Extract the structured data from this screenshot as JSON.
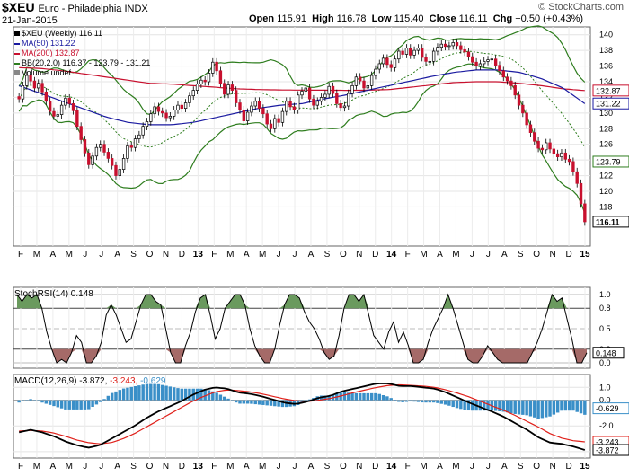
{
  "header": {
    "symbol": "$XEU",
    "name": "Euro - Philadelphia INDX",
    "date": "21-Jan-2015",
    "open_label": "Open",
    "open": "115.91",
    "high_label": "High",
    "high": "116.78",
    "low_label": "Low",
    "low": "115.40",
    "close_label": "Close",
    "close": "116.11",
    "chg_label": "Chg",
    "chg": "+0.50 (+0.43%)",
    "watermark": "© StockCharts.com"
  },
  "legend": {
    "main": "$XEU (Weekly) 116.11",
    "ma50": "MA(50) 131.22",
    "ma200": "MA(200) 132.87",
    "bb": "BB(20,2.0) 116.37 - 123.79 - 131.21",
    "volume": "Volume undef"
  },
  "indicators": {
    "stoch_title": "StochRSI(14) 0.148",
    "macd_title_black": "MACD(12,26,9) -3.872,",
    "macd_title_red": "-3.243,",
    "macd_title_blue": "-0.629"
  },
  "colors": {
    "price_up": "#ffffff",
    "price_down": "#c8102e",
    "ma50": "#1a1aa0",
    "ma200": "#c8102e",
    "bb": "#2e7d1e",
    "bb_mid": "#2e7d1e",
    "macd": "#000000",
    "signal": "#e0201a",
    "hist": "#3a8fc8",
    "stoch_hi": "#6a9a5e",
    "stoch_lo": "#a56a68"
  },
  "chart_data": [
    {
      "type": "candlestick",
      "title": "$XEU Euro - Philadelphia INDX (Weekly)",
      "ylim": [
        113,
        141
      ],
      "y_ticks": [
        118,
        120,
        122,
        124,
        126,
        128,
        130,
        132,
        134,
        136,
        138,
        140
      ],
      "x_tick_labels": [
        "F",
        "M",
        "A",
        "M",
        "J",
        "J",
        "A",
        "S",
        "O",
        "N",
        "D",
        "13",
        "F",
        "M",
        "A",
        "M",
        "J",
        "J",
        "A",
        "S",
        "O",
        "N",
        "D",
        "14",
        "F",
        "M",
        "A",
        "M",
        "J",
        "J",
        "A",
        "S",
        "O",
        "N",
        "D",
        "15"
      ],
      "close": [
        131.8,
        133.5,
        134.8,
        134.1,
        133.2,
        133.8,
        132.7,
        131.5,
        130.2,
        129.6,
        129.8,
        131.0,
        131.9,
        131.2,
        130.3,
        128.3,
        126.6,
        124.9,
        123.4,
        124.5,
        125.6,
        126.0,
        125.0,
        124.2,
        123.3,
        122.0,
        122.8,
        124.2,
        125.8,
        125.6,
        126.7,
        127.2,
        128.3,
        128.9,
        129.9,
        130.8,
        130.2,
        130.0,
        129.4,
        129.6,
        130.4,
        131.0,
        130.6,
        131.3,
        132.2,
        132.9,
        133.7,
        134.2,
        134.0,
        135.1,
        136.5,
        135.4,
        133.8,
        132.4,
        133.6,
        132.9,
        131.3,
        130.4,
        129.0,
        130.1,
        130.9,
        131.5,
        130.6,
        129.9,
        128.6,
        128.0,
        129.3,
        128.8,
        130.2,
        131.5,
        130.8,
        130.4,
        132.3,
        132.8,
        133.2,
        131.8,
        131.0,
        131.5,
        132.0,
        132.4,
        133.4,
        132.5,
        131.2,
        130.7,
        130.9,
        132.5,
        133.5,
        134.6,
        134.1,
        133.2,
        133.5,
        134.8,
        135.6,
        136.3,
        137.0,
        136.2,
        135.8,
        136.9,
        137.9,
        137.5,
        138.3,
        137.4,
        138.0,
        138.3,
        137.1,
        136.6,
        136.6,
        137.9,
        138.4,
        138.8,
        138.5,
        138.6,
        139.0,
        138.6,
        138.1,
        137.8,
        137.2,
        136.5,
        136.0,
        136.3,
        136.6,
        136.8,
        136.9,
        136.1,
        135.4,
        134.6,
        134.1,
        133.5,
        132.3,
        131.0,
        130.0,
        128.5,
        127.5,
        126.4,
        125.5,
        125.3,
        126.2,
        125.4,
        124.8,
        124.4,
        124.9,
        124.1,
        123.8,
        122.5,
        121.0,
        118.4,
        116.1
      ],
      "up_weeks": "alternating per close change",
      "series": [
        {
          "name": "MA(50)",
          "last": 131.22,
          "values": [
            133.5,
            132.5,
            131.5,
            130.5,
            129.5,
            128.8,
            128.5,
            128.5,
            128.8,
            129.4,
            130.0,
            130.6,
            131.0,
            131.2,
            131.8,
            132.3,
            132.9,
            133.5,
            134.1,
            134.7,
            135.2,
            135.5,
            135.5,
            135.2,
            134.4,
            133.2,
            131.2
          ]
        },
        {
          "name": "MA(200)",
          "last": 132.87,
          "values": [
            135.8,
            135.7,
            135.4,
            135.0,
            134.6,
            134.2,
            133.8,
            133.7,
            133.5,
            133.3,
            133.1,
            133.0,
            132.95,
            132.93,
            132.92,
            132.9,
            132.92,
            133.0,
            133.3,
            133.6,
            133.9,
            134.0,
            134.0,
            133.8,
            133.5,
            133.1,
            132.87
          ]
        },
        {
          "name": "BB upper",
          "last": 131.21
        },
        {
          "name": "BB middle",
          "last": 123.79
        },
        {
          "name": "BB lower",
          "last": 116.37
        }
      ]
    },
    {
      "type": "line",
      "title": "StochRSI(14) 0.148",
      "ylim": [
        0,
        1
      ],
      "y_ticks": [
        0.0,
        0.2,
        0.5,
        0.8,
        1.0
      ],
      "last": 0.148,
      "values": [
        1.0,
        0.9,
        1.0,
        0.95,
        1.0,
        0.8,
        0.45,
        0.2,
        0.0,
        0.05,
        0.0,
        0.15,
        0.4,
        0.3,
        0.0,
        0.0,
        0.1,
        0.3,
        0.7,
        0.85,
        0.7,
        0.5,
        0.3,
        0.35,
        0.6,
        0.85,
        1.0,
        1.0,
        0.9,
        0.85,
        0.5,
        0.15,
        0.0,
        0.0,
        0.25,
        0.45,
        0.75,
        0.95,
        1.0,
        0.7,
        0.35,
        0.5,
        0.8,
        0.9,
        1.0,
        1.0,
        0.85,
        0.5,
        0.25,
        0.1,
        0.0,
        0.0,
        0.2,
        0.55,
        0.85,
        1.0,
        1.0,
        0.95,
        0.75,
        0.6,
        0.5,
        0.35,
        0.15,
        0.05,
        0.1,
        0.4,
        0.8,
        1.0,
        1.0,
        0.9,
        1.0,
        0.7,
        0.4,
        0.3,
        0.2,
        0.45,
        0.6,
        0.3,
        0.45,
        0.25,
        0.0,
        0.0,
        0.05,
        0.3,
        0.5,
        0.65,
        0.8,
        1.0,
        0.8,
        0.55,
        0.3,
        0.05,
        0.0,
        0.0,
        0.1,
        0.25,
        0.15,
        0.05,
        0.0,
        0.0,
        0.0,
        0.0,
        0.0,
        0.0,
        0.15,
        0.3,
        0.5,
        0.75,
        1.0,
        0.9,
        0.95,
        0.65,
        0.35,
        0.0,
        0.0,
        0.148
      ]
    },
    {
      "type": "line",
      "title": "MACD(12,26,9)",
      "ylim": [
        -4.5,
        2.0
      ],
      "y_ticks": [
        -4.0,
        -2.0,
        0.0,
        1.0
      ],
      "last_values": {
        "macd": -3.872,
        "signal": -3.243,
        "histogram": -0.629
      },
      "series": [
        {
          "name": "MACD",
          "values": [
            -2.5,
            -2.3,
            -2.5,
            -2.8,
            -3.2,
            -3.5,
            -3.7,
            -3.5,
            -3.0,
            -2.5,
            -2.0,
            -1.4,
            -0.9,
            -0.5,
            -0.1,
            0.4,
            0.8,
            1.0,
            0.9,
            0.6,
            0.5,
            0.3,
            0.05,
            -0.2,
            -0.3,
            -0.1,
            0.2,
            0.35,
            0.7,
            0.9,
            1.1,
            1.3,
            1.3,
            1.1,
            1.1,
            1.0,
            0.9,
            0.6,
            0.2,
            -0.2,
            -0.55,
            -0.9,
            -1.3,
            -1.8,
            -2.3,
            -2.9,
            -3.3,
            -3.4,
            -3.6,
            -3.87
          ]
        },
        {
          "name": "Signal",
          "values": [
            -2.4,
            -2.35,
            -2.4,
            -2.55,
            -2.8,
            -3.1,
            -3.3,
            -3.4,
            -3.3,
            -3.0,
            -2.6,
            -2.1,
            -1.6,
            -1.1,
            -0.6,
            -0.1,
            0.3,
            0.65,
            0.8,
            0.75,
            0.65,
            0.5,
            0.3,
            0.1,
            -0.05,
            -0.1,
            0.0,
            0.15,
            0.35,
            0.6,
            0.8,
            1.0,
            1.15,
            1.2,
            1.15,
            1.1,
            1.0,
            0.8,
            0.55,
            0.25,
            -0.1,
            -0.45,
            -0.8,
            -1.2,
            -1.65,
            -2.1,
            -2.6,
            -2.95,
            -3.15,
            -3.24
          ]
        }
      ]
    }
  ]
}
